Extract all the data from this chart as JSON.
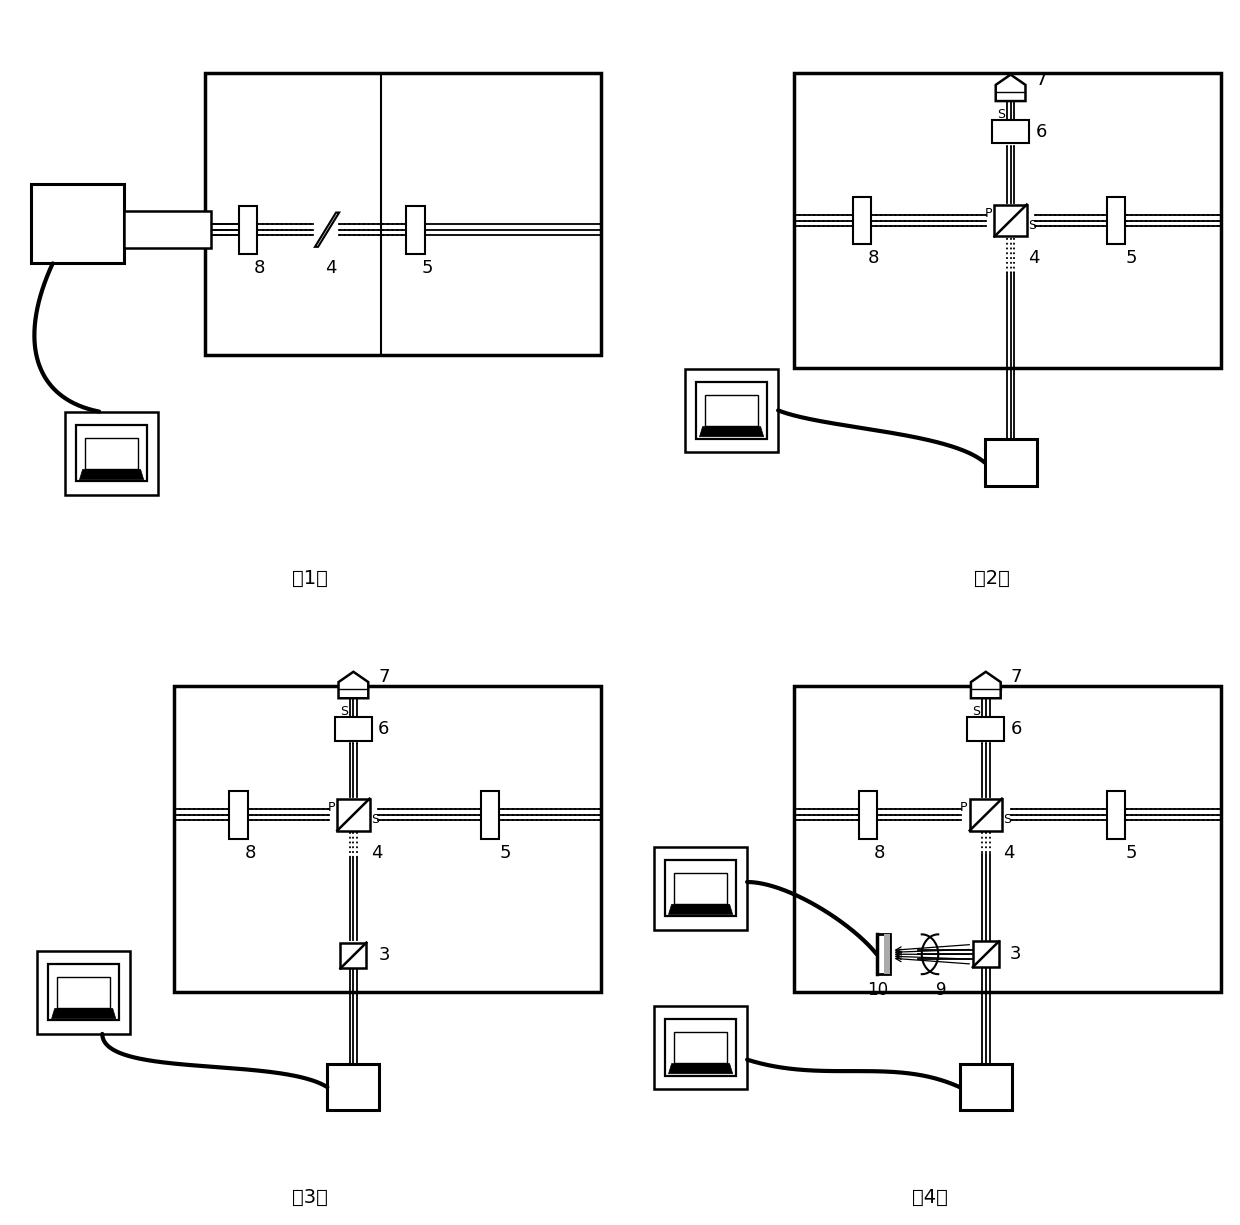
{
  "fig_width": 12.4,
  "fig_height": 12.25,
  "bg_color": "#ffffff",
  "panel_labels": [
    "(1)",
    "(2)",
    "(3)",
    "(4)"
  ]
}
